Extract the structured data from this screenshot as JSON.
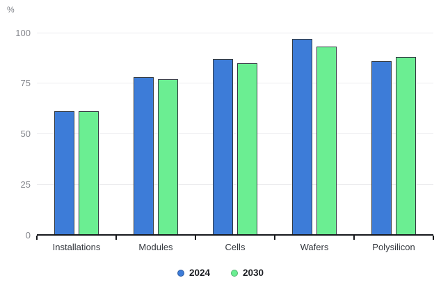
{
  "chart_data": {
    "type": "bar",
    "title": "",
    "ylabel": "%",
    "xlabel": "",
    "categories": [
      "Installations",
      "Modules",
      "Cells",
      "Wafers",
      "Polysilicon"
    ],
    "series": [
      {
        "name": "2024",
        "color": "#3d7cd8",
        "values": [
          61,
          78,
          87,
          97,
          86
        ]
      },
      {
        "name": "2030",
        "color": "#6bee92",
        "values": [
          61,
          77,
          85,
          93,
          88
        ]
      }
    ],
    "ylim": [
      0,
      100
    ],
    "yticks": [
      0,
      25,
      50,
      75,
      100
    ],
    "grid": true,
    "legend_position": "bottom"
  },
  "colors": {
    "series_2024": "#3d7cd8",
    "series_2030": "#6bee92",
    "bar_border": "#333a42",
    "gridline": "#ececee",
    "axis": "#16181c",
    "y_label_text": "#85878d",
    "x_label_text": "#33373d",
    "legend_text": "#1d1f24"
  }
}
